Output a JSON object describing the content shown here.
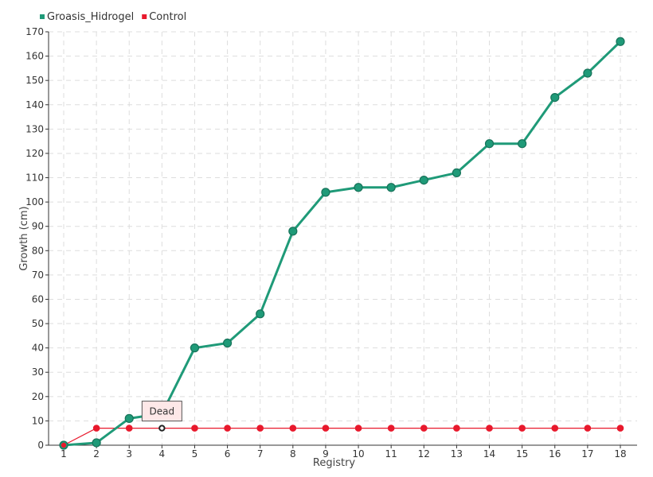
{
  "chart_data": {
    "type": "line",
    "title": "",
    "xlabel": "Registry",
    "ylabel": "Growth (cm)",
    "x": [
      1,
      2,
      3,
      4,
      5,
      6,
      7,
      8,
      9,
      10,
      11,
      12,
      13,
      14,
      15,
      16,
      17,
      18
    ],
    "xlim": [
      1,
      18
    ],
    "ylim": [
      0,
      170
    ],
    "ytick_step": 10,
    "grid": true,
    "legend_position": "top-left",
    "series": [
      {
        "name": "Groasis_Hidrogel",
        "color": "#1f9a78",
        "values": [
          0,
          1,
          11,
          13,
          40,
          42,
          54,
          88,
          104,
          106,
          106,
          109,
          112,
          124,
          124,
          143,
          153,
          166
        ]
      },
      {
        "name": "Control",
        "color": "#e8192c",
        "values": [
          0,
          7,
          7,
          7,
          7,
          7,
          7,
          7,
          7,
          7,
          7,
          7,
          7,
          7,
          7,
          7,
          7,
          7
        ]
      }
    ],
    "annotation": {
      "text": "Dead",
      "series": "Control",
      "x": 4
    }
  }
}
